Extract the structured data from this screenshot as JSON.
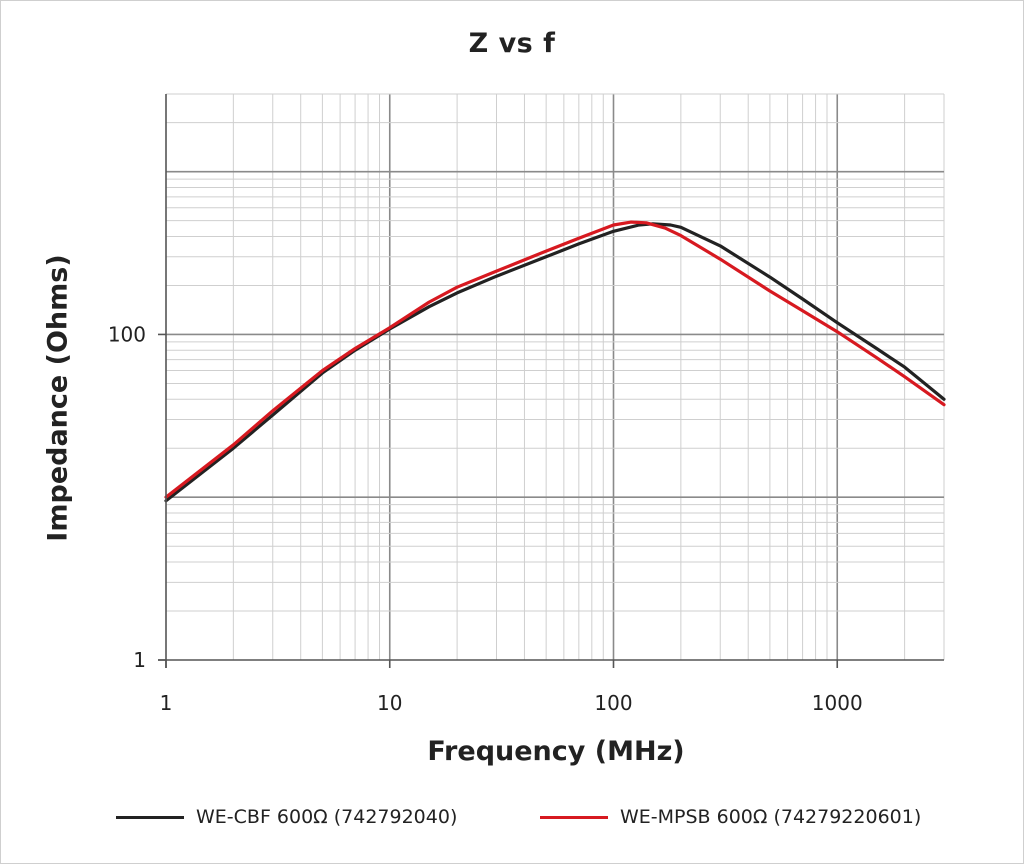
{
  "chart_data": {
    "type": "line",
    "title": "Z vs f",
    "xlabel": "Frequency (MHz)",
    "ylabel": "Impedance (Ohms)",
    "xscale": "log",
    "yscale": "log",
    "xlim": [
      1,
      3000
    ],
    "ylim": [
      1,
      3000
    ],
    "grid": true,
    "legend_position": "bottom",
    "x_ticks": [
      {
        "value": 1,
        "label": "1"
      },
      {
        "value": 10,
        "label": "10"
      },
      {
        "value": 100,
        "label": "100"
      },
      {
        "value": 1000,
        "label": "1000"
      }
    ],
    "y_ticks": [
      {
        "value": 1,
        "label": "1"
      },
      {
        "value": 100,
        "label": "100"
      }
    ],
    "series": [
      {
        "name": "WE-CBF 600Ω  (742792040)",
        "color": "#222222",
        "x": [
          1,
          2,
          3,
          5,
          7,
          10,
          15,
          20,
          30,
          50,
          70,
          100,
          130,
          150,
          180,
          200,
          300,
          500,
          700,
          1000,
          1500,
          2000,
          3000
        ],
        "y": [
          9.5,
          20,
          32,
          58,
          80,
          108,
          148,
          180,
          228,
          300,
          360,
          430,
          470,
          478,
          470,
          455,
          350,
          225,
          165,
          118,
          82,
          63,
          40
        ]
      },
      {
        "name": "WE-MPSB 600Ω  (74279220601)",
        "color": "#d71920",
        "x": [
          1,
          2,
          3,
          5,
          7,
          10,
          15,
          20,
          30,
          50,
          70,
          100,
          120,
          140,
          170,
          200,
          300,
          500,
          700,
          1000,
          1500,
          2000,
          3000
        ],
        "y": [
          10,
          21,
          34,
          60,
          82,
          110,
          158,
          195,
          245,
          325,
          390,
          470,
          490,
          485,
          450,
          405,
          290,
          185,
          140,
          104,
          72,
          55,
          37
        ]
      }
    ]
  }
}
